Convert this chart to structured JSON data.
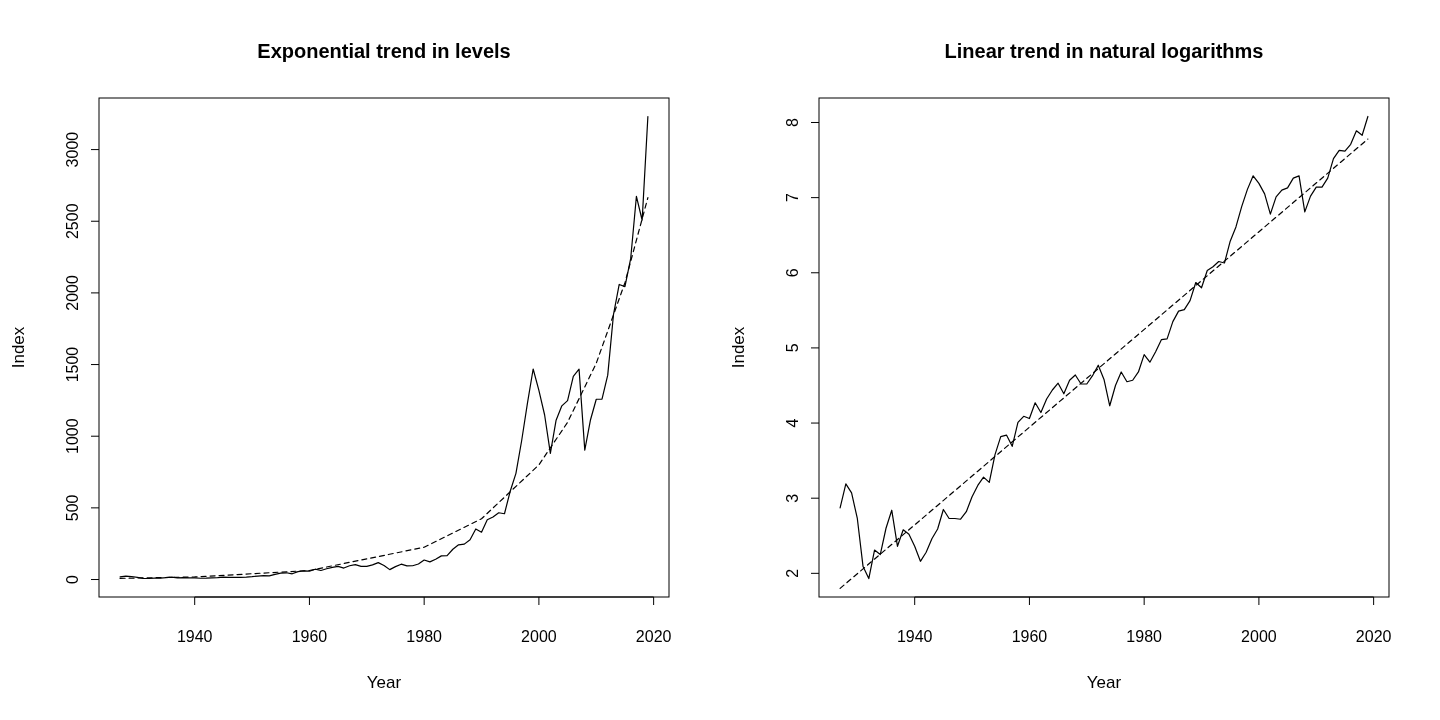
{
  "chart_data": [
    {
      "type": "line",
      "title": "Exponential trend in levels",
      "xlabel": "Year",
      "ylabel": "Index",
      "xlim": [
        1923.32,
        2022.68
      ],
      "ylim": [
        -122,
        3360
      ],
      "xticks": [
        1940,
        1960,
        1980,
        2000,
        2020
      ],
      "yticks": [
        0,
        500,
        1000,
        1500,
        2000,
        2500,
        3000
      ],
      "x": [
        1927,
        1928,
        1929,
        1930,
        1931,
        1932,
        1933,
        1934,
        1935,
        1936,
        1937,
        1938,
        1939,
        1940,
        1941,
        1942,
        1943,
        1944,
        1945,
        1946,
        1947,
        1948,
        1949,
        1950,
        1951,
        1952,
        1953,
        1954,
        1955,
        1956,
        1957,
        1958,
        1959,
        1960,
        1961,
        1962,
        1963,
        1964,
        1965,
        1966,
        1967,
        1968,
        1969,
        1970,
        1971,
        1972,
        1973,
        1974,
        1975,
        1976,
        1977,
        1978,
        1979,
        1980,
        1981,
        1982,
        1983,
        1984,
        1985,
        1986,
        1987,
        1988,
        1989,
        1990,
        1991,
        1992,
        1993,
        1994,
        1995,
        1996,
        1997,
        1998,
        1999,
        2000,
        2001,
        2002,
        2003,
        2004,
        2005,
        2006,
        2007,
        2008,
        2009,
        2010,
        2011,
        2012,
        2013,
        2014,
        2015,
        2016,
        2017,
        2018,
        2019
      ],
      "series": [
        {
          "color": "#000000",
          "line_style": "solid",
          "values": [
            18,
            24,
            21,
            15,
            8,
            7,
            10,
            10,
            13,
            17,
            11,
            13,
            12,
            11,
            9,
            10,
            12,
            13,
            17,
            15,
            15,
            15,
            17,
            20,
            24,
            27,
            25,
            36,
            45,
            47,
            40,
            55,
            60,
            58,
            72,
            63,
            75,
            85,
            92,
            80,
            96,
            104,
            92,
            92,
            102,
            118,
            98,
            69,
            90,
            107,
            95,
            96,
            108,
            136,
            123,
            141,
            165,
            167,
            211,
            242,
            247,
            278,
            353,
            330,
            417,
            436,
            466,
            459,
            616,
            741,
            970,
            1229,
            1469,
            1320,
            1148,
            880,
            1112,
            1212,
            1248,
            1418,
            1468,
            903,
            1115,
            1258,
            1258,
            1426,
            1848,
            2059,
            2044,
            2239,
            2674,
            2507,
            3231
          ]
        },
        {
          "type": "line",
          "color": "#000000",
          "line_style": "dashed",
          "x": [
            1927,
            1940,
            1960,
            1980,
            1990,
            2000,
            2005,
            2010,
            2015,
            2019
          ],
          "values": [
            8,
            18,
            63,
            225,
            424,
            800,
            1097,
            1509,
            2071,
            2665
          ]
        }
      ]
    },
    {
      "type": "line",
      "title": "Linear trend in natural logarithms",
      "xlabel": "Year",
      "ylabel": "Index",
      "xlim": [
        1923.32,
        2022.68
      ],
      "ylim": [
        1.685,
        8.326
      ],
      "xticks": [
        1940,
        1960,
        1980,
        2000,
        2020
      ],
      "yticks": [
        2,
        3,
        4,
        5,
        6,
        7,
        8
      ],
      "x": [
        1927,
        1928,
        1929,
        1930,
        1931,
        1932,
        1933,
        1934,
        1935,
        1936,
        1937,
        1938,
        1939,
        1940,
        1941,
        1942,
        1943,
        1944,
        1945,
        1946,
        1947,
        1948,
        1949,
        1950,
        1951,
        1952,
        1953,
        1954,
        1955,
        1956,
        1957,
        1958,
        1959,
        1960,
        1961,
        1962,
        1963,
        1964,
        1965,
        1966,
        1967,
        1968,
        1969,
        1970,
        1971,
        1972,
        1973,
        1974,
        1975,
        1976,
        1977,
        1978,
        1979,
        1980,
        1981,
        1982,
        1983,
        1984,
        1985,
        1986,
        1987,
        1988,
        1989,
        1990,
        1991,
        1992,
        1993,
        1994,
        1995,
        1996,
        1997,
        1998,
        1999,
        2000,
        2001,
        2002,
        2003,
        2004,
        2005,
        2006,
        2007,
        2008,
        2009,
        2010,
        2011,
        2012,
        2013,
        2014,
        2015,
        2016,
        2017,
        2018,
        2019
      ],
      "series": [
        {
          "color": "#000000",
          "line_style": "solid",
          "values": [
            2.87,
            3.19,
            3.07,
            2.73,
            2.09,
            1.93,
            2.31,
            2.25,
            2.6,
            2.84,
            2.36,
            2.58,
            2.52,
            2.36,
            2.16,
            2.28,
            2.46,
            2.59,
            2.85,
            2.73,
            2.73,
            2.72,
            2.82,
            3.02,
            3.17,
            3.28,
            3.21,
            3.58,
            3.82,
            3.84,
            3.69,
            4.01,
            4.09,
            4.06,
            4.27,
            4.14,
            4.32,
            4.44,
            4.53,
            4.39,
            4.57,
            4.64,
            4.52,
            4.52,
            4.63,
            4.77,
            4.58,
            4.23,
            4.5,
            4.68,
            4.55,
            4.57,
            4.68,
            4.91,
            4.81,
            4.95,
            5.11,
            5.12,
            5.35,
            5.49,
            5.51,
            5.63,
            5.87,
            5.8,
            6.03,
            6.08,
            6.15,
            6.13,
            6.42,
            6.61,
            6.88,
            7.11,
            7.29,
            7.19,
            7.05,
            6.78,
            7.01,
            7.1,
            7.13,
            7.26,
            7.29,
            6.81,
            7.02,
            7.14,
            7.14,
            7.26,
            7.52,
            7.63,
            7.62,
            7.71,
            7.89,
            7.83,
            8.08
          ]
        },
        {
          "type": "line",
          "color": "#000000",
          "line_style": "dashed",
          "x": [
            1927,
            2019
          ],
          "values": [
            1.8,
            7.78
          ]
        }
      ]
    }
  ]
}
